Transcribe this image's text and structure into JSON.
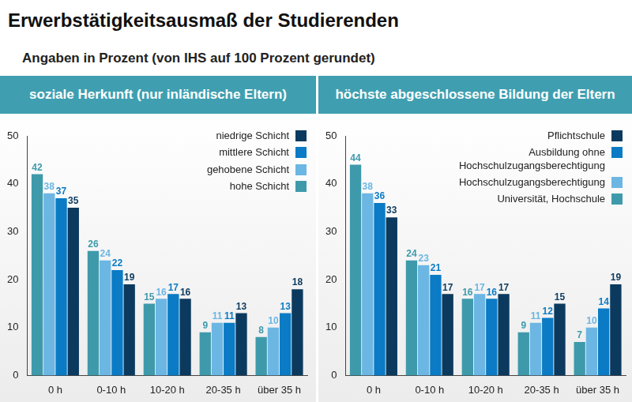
{
  "title": "Erwerbstätigkeitsausmaß der Studierenden",
  "subtitle": "Angaben in Prozent (von IHS auf 100 Prozent gerundet)",
  "chart_data": [
    {
      "type": "bar",
      "title": "soziale Herkunft (nur inländische Eltern)",
      "categories": [
        "0 h",
        "0-10 h",
        "10-20 h",
        "20-35 h",
        "über 35 h"
      ],
      "series": [
        {
          "name": "hohe Schicht",
          "color": "#3e9aab",
          "values": [
            42,
            26,
            15,
            9,
            8
          ]
        },
        {
          "name": "gehobene Schicht",
          "color": "#6cb6e3",
          "values": [
            38,
            24,
            16,
            11,
            10
          ]
        },
        {
          "name": "mittlere Schicht",
          "color": "#0a7bc4",
          "values": [
            37,
            22,
            17,
            11,
            13
          ]
        },
        {
          "name": "niedrige Schicht",
          "color": "#0c3a5e",
          "values": [
            35,
            19,
            16,
            13,
            18
          ]
        }
      ],
      "ylim": [
        0,
        50
      ],
      "yticks": [
        0,
        10,
        20,
        30,
        40,
        50
      ],
      "grid": false,
      "legend": "upper right",
      "data_labels": true
    },
    {
      "type": "bar",
      "title": "höchste abgeschlossene Bildung der Eltern",
      "categories": [
        "0 h",
        "0-10 h",
        "10-20 h",
        "20-35 h",
        "über 35 h"
      ],
      "series": [
        {
          "name": "Universität, Hochschule",
          "color": "#3e9aab",
          "values": [
            44,
            24,
            16,
            9,
            7
          ]
        },
        {
          "name": "Hochschulzugangsberechtigung",
          "color": "#6cb6e3",
          "values": [
            38,
            23,
            17,
            11,
            10
          ]
        },
        {
          "name": "Ausbildung ohne Hochschulzugangsberechtigung",
          "color": "#0a7bc4",
          "values": [
            36,
            21,
            16,
            12,
            14
          ]
        },
        {
          "name": "Pflichtschule",
          "color": "#0c3a5e",
          "values": [
            33,
            17,
            17,
            15,
            19
          ]
        }
      ],
      "ylim": [
        0,
        50
      ],
      "yticks": [
        0,
        10,
        20,
        30,
        40,
        50
      ],
      "grid": false,
      "legend": "upper right",
      "data_labels": true
    }
  ]
}
